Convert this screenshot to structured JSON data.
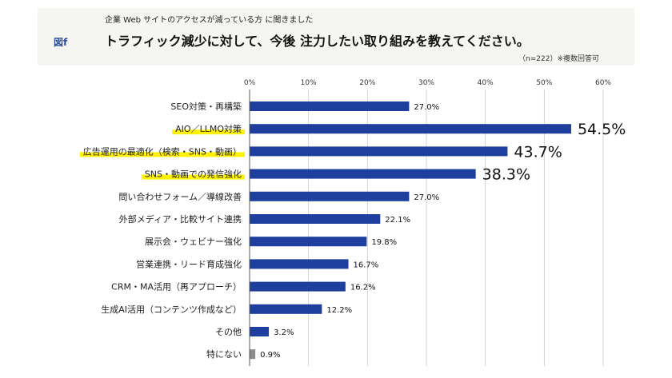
{
  "header": {
    "figure_label": "図f",
    "subtitle": "企業 Web サイトのアクセスが減っている方 に聞きました",
    "title": "トラフィック減少に対して、今後 注力したい取り組みを教えてください。",
    "note": "（n=222）※複数回答可"
  },
  "colors": {
    "bar": "#1f3f9e",
    "bar_other": "#8c8c8c",
    "highlight": "#fff200",
    "grid": "#c9c9c9",
    "header_bg": "#f5f5f1"
  },
  "chart_data": {
    "type": "bar",
    "orientation": "horizontal",
    "title": "トラフィック減少に対して、今後 注力したい取り組みを教えてください。",
    "xlim": [
      0,
      60
    ],
    "xticks": [
      "0%",
      "10%",
      "20%",
      "30%",
      "40%",
      "50%",
      "60%"
    ],
    "xtick_values": [
      0,
      10,
      20,
      30,
      40,
      50,
      60
    ],
    "grid": true,
    "categories": [
      "SEO対策・再構築",
      "AIO／LLMO対策",
      "広告運用の最適化（検索・SNS・動画）",
      "SNS・動画での発信強化",
      "問い合わせフォーム／導線改善",
      "外部メディア・比較サイト連携",
      "展示会・ウェビナー強化",
      "営業連携・リード育成強化",
      "CRM・MA活用（再アプローチ）",
      "生成AI活用（コンテンツ作成など）",
      "その他",
      "特にない"
    ],
    "values": [
      27.0,
      54.5,
      43.7,
      38.3,
      27.0,
      22.1,
      19.8,
      16.7,
      16.2,
      12.2,
      3.2,
      0.9
    ],
    "value_labels": [
      "27.0%",
      "54.5%",
      "43.7%",
      "38.3%",
      "27.0%",
      "22.1%",
      "19.8%",
      "16.7%",
      "16.2%",
      "12.2%",
      "3.2%",
      "0.9%"
    ],
    "emphasized": [
      false,
      true,
      true,
      true,
      false,
      false,
      false,
      false,
      false,
      false,
      false,
      false
    ],
    "highlighted_labels": [
      false,
      true,
      true,
      true,
      false,
      false,
      false,
      false,
      false,
      false,
      false,
      false
    ],
    "grey_bars": [
      false,
      false,
      false,
      false,
      false,
      false,
      false,
      false,
      false,
      false,
      false,
      true
    ]
  }
}
